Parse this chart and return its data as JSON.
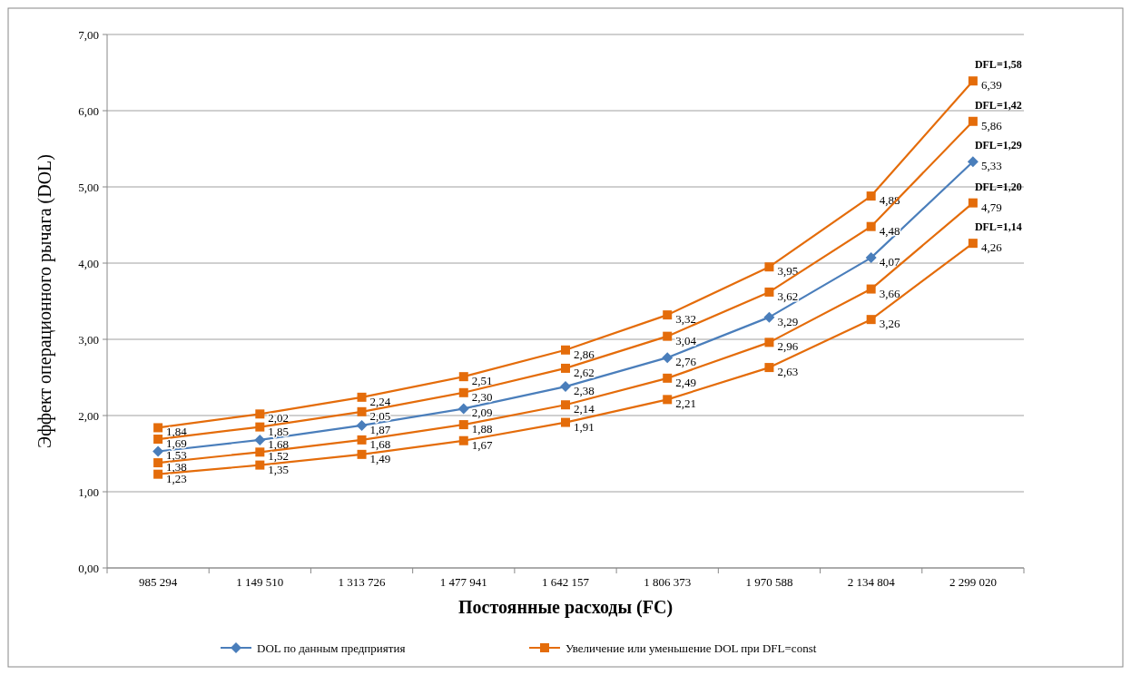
{
  "chart_data": {
    "type": "line",
    "xlabel": "Постоянные расходы (FC)",
    "ylabel": "Эффект операционного рычага (DOL)",
    "categories": [
      "985 294",
      "1 149 510",
      "1 313 726",
      "1 477 941",
      "1 642 157",
      "1 806 373",
      "1 970 588",
      "2 134 804",
      "2 299 020"
    ],
    "series": [
      {
        "name": "DOL по данным предприятия",
        "color": "#4a7ebb",
        "marker": "diamond",
        "values": [
          1.53,
          1.68,
          1.87,
          2.09,
          2.38,
          2.76,
          3.29,
          4.07,
          5.33
        ],
        "value_labels": [
          "1,53",
          "1,68",
          "1,87",
          "2,09",
          "2,38",
          "2,76",
          "3,29",
          "4,07",
          "5,33"
        ]
      },
      {
        "name": "Увеличение или уменьшение DOL при DFL=const",
        "color": "#e46c0a",
        "marker": "square",
        "values": [
          1.84,
          2.02,
          2.24,
          2.51,
          2.86,
          3.32,
          3.95,
          4.88,
          6.39
        ],
        "value_labels": [
          "1,84",
          "2,02",
          "2,24",
          "2,51",
          "2,86",
          "3,32",
          "3,95",
          "4,88",
          "6,39"
        ]
      },
      {
        "color": "#e46c0a",
        "marker": "square",
        "values": [
          1.69,
          1.85,
          2.05,
          2.3,
          2.62,
          3.04,
          3.62,
          4.48,
          5.86
        ],
        "value_labels": [
          "1,69",
          "1,85",
          "2,05",
          "2,30",
          "2,62",
          "3,04",
          "3,62",
          "4,48",
          "5,86"
        ]
      },
      {
        "color": "#e46c0a",
        "marker": "square",
        "values": [
          1.38,
          1.52,
          1.68,
          1.88,
          2.14,
          2.49,
          2.96,
          3.66,
          4.79
        ],
        "value_labels": [
          "1,38",
          "1,52",
          "1,68",
          "1,88",
          "2,14",
          "2,49",
          "2,96",
          "3,66",
          "4,79"
        ]
      },
      {
        "color": "#e46c0a",
        "marker": "square",
        "values": [
          1.23,
          1.35,
          1.49,
          1.67,
          1.91,
          2.21,
          2.63,
          3.26,
          4.26
        ],
        "value_labels": [
          "1,23",
          "1,35",
          "1,49",
          "1,67",
          "1,91",
          "2,21",
          "2,63",
          "3,26",
          "4,26"
        ]
      }
    ],
    "ylim": [
      0,
      7
    ],
    "yticks": [
      {
        "value": 0,
        "label": "0,00"
      },
      {
        "value": 1,
        "label": "1,00"
      },
      {
        "value": 2,
        "label": "2,00"
      },
      {
        "value": 3,
        "label": "3,00"
      },
      {
        "value": 4,
        "label": "4,00"
      },
      {
        "value": 5,
        "label": "5,00"
      },
      {
        "value": 6,
        "label": "6,00"
      },
      {
        "value": 7,
        "label": "7,00"
      }
    ],
    "grid": "y",
    "legend": "bottom",
    "line_style": "solid",
    "annotations": [
      {
        "text": "DFL=1,58",
        "x": "2 299 020",
        "y": 6.39
      },
      {
        "text": "DFL=1,42",
        "x": "2 299 020",
        "y": 5.86
      },
      {
        "text": "DFL=1,29",
        "x": "2 299 020",
        "y": 5.33
      },
      {
        "text": "DFL=1,20",
        "x": "2 299 020",
        "y": 4.79
      },
      {
        "text": "DFL=1,14",
        "x": "2 299 020",
        "y": 4.26
      }
    ]
  }
}
